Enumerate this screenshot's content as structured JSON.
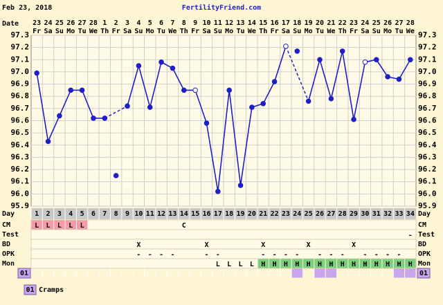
{
  "header": {
    "date": "Feb 23, 2018",
    "site": "FertilityFriend.com"
  },
  "chart_data": {
    "type": "line",
    "x_label": "Date",
    "x": [
      "23",
      "24",
      "25",
      "26",
      "27",
      "28",
      "1",
      "2",
      "3",
      "4",
      "5",
      "6",
      "7",
      "8",
      "9",
      "10",
      "11",
      "12",
      "13",
      "14",
      "15",
      "16",
      "17",
      "18",
      "19",
      "20",
      "21",
      "22",
      "23",
      "24",
      "25",
      "26",
      "27",
      "28"
    ],
    "weekdays": [
      "Fr",
      "Sa",
      "Su",
      "Mo",
      "Tu",
      "We",
      "Th",
      "Fr",
      "Sa",
      "Su",
      "Mo",
      "Tu",
      "We",
      "Th",
      "Fr",
      "Sa",
      "Su",
      "Mo",
      "Tu",
      "We",
      "Th",
      "Fr",
      "Sa",
      "Su",
      "Mo",
      "Tu",
      "We",
      "Th",
      "Fr",
      "Sa",
      "Su",
      "Mo",
      "Tu",
      "We"
    ],
    "ylim": [
      95.9,
      97.3
    ],
    "yticks": [
      95.9,
      {
        "value": 96,
        "label": "96.0"
      },
      96.1,
      96.2,
      96.3,
      96.4,
      96.5,
      96.6,
      96.7,
      96.8,
      96.9,
      {
        "value": 97,
        "label": "97.0"
      },
      97.1,
      97.2,
      97.3
    ],
    "grid": true,
    "series": [
      {
        "color": "#1f1fc8",
        "values": [
          96.99,
          96.43,
          96.64,
          96.85,
          96.85,
          96.62,
          96.62,
          null,
          96.72,
          97.05,
          96.71,
          97.08,
          97.03,
          96.85,
          96.85,
          96.58,
          96.02,
          96.85,
          96.07,
          96.71,
          96.74,
          96.92,
          97.21,
          null,
          96.76,
          97.1,
          96.78,
          97.17,
          96.61,
          97.08,
          97.1,
          96.96,
          96.94,
          97.1
        ]
      },
      {
        "color": "#1f1fc8",
        "values": [
          null,
          null,
          null,
          null,
          null,
          null,
          null,
          96.15,
          null,
          null,
          null,
          null,
          null,
          null,
          null,
          null,
          null,
          null,
          null,
          null,
          null,
          null,
          null,
          97.17,
          null,
          null,
          null,
          null,
          null,
          null,
          null,
          null,
          null,
          null
        ]
      }
    ],
    "open_markers": [
      15,
      23,
      30
    ]
  },
  "table": {
    "day_label": "Day",
    "days": [
      1,
      2,
      3,
      4,
      5,
      6,
      7,
      8,
      9,
      10,
      11,
      12,
      13,
      14,
      15,
      16,
      17,
      18,
      19,
      20,
      21,
      22,
      23,
      24,
      25,
      26,
      27,
      28,
      29,
      30,
      31,
      32,
      33,
      34
    ],
    "rows": [
      {
        "label": "CM",
        "highlight": {
          "text": "L",
          "color": "#f59aa8"
        },
        "cells": [
          "L",
          "L",
          "L",
          "L",
          "L",
          null,
          null,
          null,
          null,
          null,
          null,
          null,
          null,
          "C",
          null,
          null,
          null,
          null,
          null,
          null,
          null,
          null,
          null,
          null,
          null,
          null,
          null,
          null,
          null,
          null,
          null,
          null,
          null,
          null
        ]
      },
      {
        "label": "Test",
        "cells": [
          null,
          null,
          null,
          null,
          null,
          null,
          null,
          null,
          null,
          null,
          null,
          null,
          null,
          null,
          null,
          null,
          null,
          null,
          null,
          null,
          null,
          null,
          null,
          null,
          null,
          null,
          null,
          null,
          null,
          null,
          null,
          null,
          null,
          "-"
        ]
      },
      {
        "label": "BD",
        "cells": [
          null,
          null,
          null,
          null,
          null,
          null,
          null,
          null,
          null,
          "X",
          null,
          null,
          null,
          null,
          null,
          "X",
          null,
          null,
          null,
          null,
          "X",
          null,
          null,
          null,
          "X",
          null,
          null,
          null,
          "X",
          null,
          null,
          null,
          null,
          null
        ]
      },
      {
        "label": "OPK",
        "cells": [
          null,
          null,
          null,
          null,
          null,
          null,
          null,
          null,
          null,
          "-",
          "-",
          "-",
          "-",
          null,
          null,
          "-",
          "-",
          null,
          null,
          null,
          "-",
          "-",
          "-",
          "-",
          null,
          "-",
          "-",
          "-",
          null,
          "-",
          "-",
          "-",
          "-",
          null
        ]
      },
      {
        "label": "Mon",
        "highlight": {
          "text": "H",
          "color": "#7ccf7c"
        },
        "cells": [
          null,
          null,
          null,
          null,
          null,
          null,
          null,
          null,
          null,
          null,
          null,
          null,
          null,
          null,
          null,
          null,
          "L",
          "L",
          "L",
          "L",
          "H",
          "H",
          "H",
          "H",
          "H",
          "H",
          "H",
          "H",
          "H",
          "H",
          "H",
          "H",
          "H",
          "H"
        ]
      }
    ],
    "cramps_label": "01",
    "cramps_color": "#c9a6ec",
    "cramps_days": [
      24,
      26,
      27,
      33,
      34
    ]
  },
  "legend": {
    "code": "01",
    "text": "Cramps"
  }
}
